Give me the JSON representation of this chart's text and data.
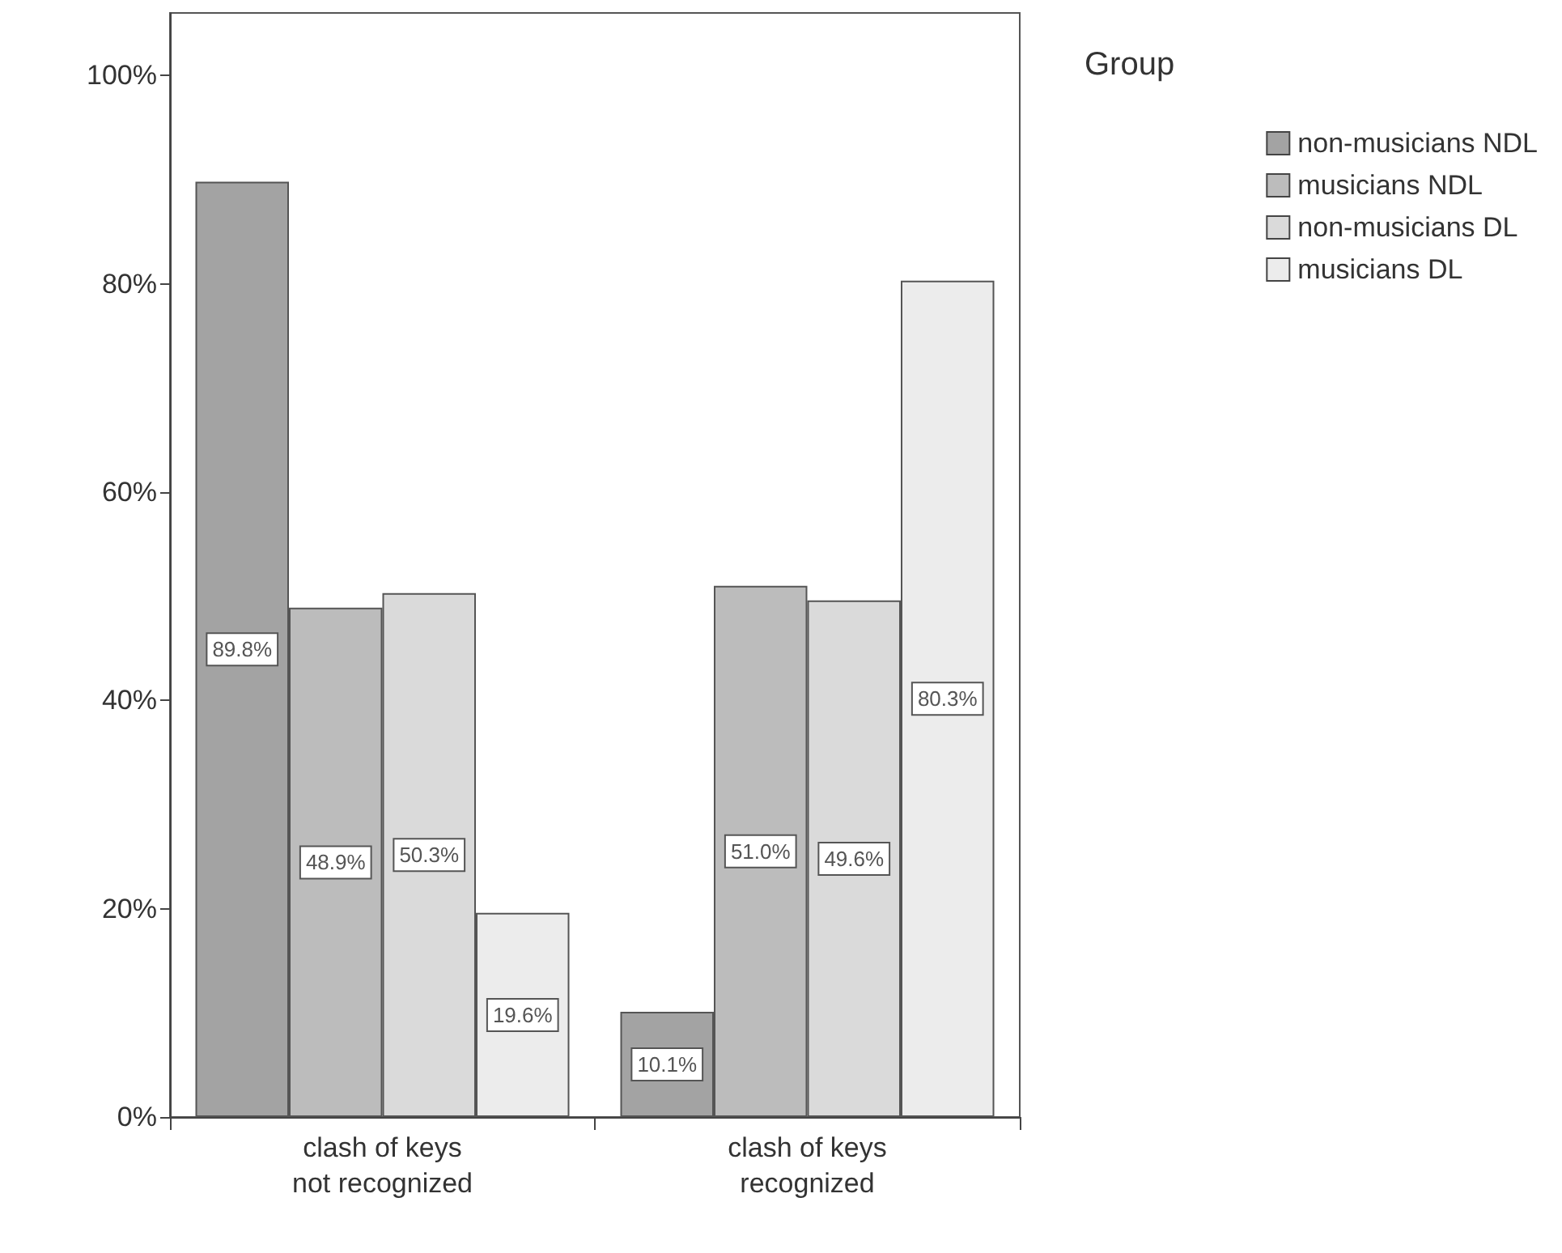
{
  "chart_data": {
    "type": "bar",
    "categories": [
      "clash of keys\nnot recognized",
      "clash of keys\nrecognized"
    ],
    "series": [
      {
        "name": "non-musicians NDL",
        "color": "#a3a3a3",
        "values": [
          89.8,
          10.1
        ],
        "value_labels": [
          "89.8%",
          "10.1%"
        ]
      },
      {
        "name": "musicians NDL",
        "color": "#bcbcbc",
        "values": [
          48.9,
          51.0
        ],
        "value_labels": [
          "48.9%",
          "51.0%"
        ]
      },
      {
        "name": "non-musicians DL",
        "color": "#dadada",
        "values": [
          50.3,
          49.6
        ],
        "value_labels": [
          "50.3%",
          "49.6%"
        ]
      },
      {
        "name": "musicians DL",
        "color": "#ececec",
        "values": [
          19.6,
          80.3
        ],
        "value_labels": [
          "19.6%",
          "80.3%"
        ]
      }
    ],
    "ylim": [
      0,
      106
    ],
    "yticks": [
      {
        "value": 0,
        "label": "0%"
      },
      {
        "value": 20,
        "label": "20%"
      },
      {
        "value": 40,
        "label": "40%"
      },
      {
        "value": 60,
        "label": "60%"
      },
      {
        "value": 80,
        "label": "80%"
      },
      {
        "value": 100,
        "label": "100%"
      }
    ],
    "legend_title": "Group",
    "legend": "top right",
    "grid": false
  }
}
